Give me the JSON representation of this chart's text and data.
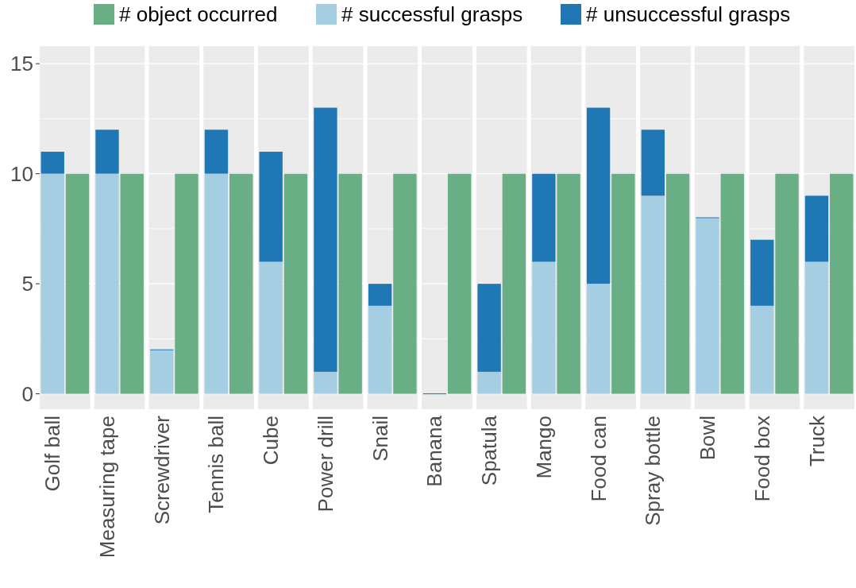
{
  "chart_data": {
    "type": "bar",
    "stacked": true,
    "categories": [
      "Golf ball",
      null,
      "Measuring tape",
      null,
      "Screwdriver",
      null,
      "Tennis ball",
      null,
      "Cube",
      null,
      "Power drill",
      null,
      "Snail",
      null,
      "Banana",
      null,
      "Spatula",
      null,
      "Mango",
      null,
      "Food can",
      null,
      "Spray bottle",
      null,
      "Bowl",
      null,
      "Food box",
      null,
      "Truck",
      null
    ],
    "ylim": [
      -0.7,
      15.8
    ],
    "yticks": [
      0,
      {
        "value": 2.5,
        "label": null
      },
      5,
      {
        "value": 7.5,
        "label": null
      },
      10,
      {
        "value": 12.5,
        "label": null
      },
      15
    ],
    "grid": true,
    "legend": "top",
    "series": [
      {
        "name": "# object occurred",
        "color": "#6aae86",
        "values": [
          null,
          10,
          null,
          10,
          null,
          10,
          null,
          10,
          null,
          10,
          null,
          10,
          null,
          10,
          null,
          10,
          null,
          10,
          null,
          10,
          null,
          10,
          null,
          10,
          null,
          10,
          null,
          10,
          null,
          10
        ]
      },
      {
        "name": "# successful grasps",
        "color": "#a6cee3",
        "values": [
          10,
          null,
          10,
          null,
          2,
          null,
          10,
          null,
          6,
          null,
          1,
          null,
          4,
          null,
          0,
          null,
          1,
          null,
          6,
          null,
          5,
          null,
          9,
          null,
          8,
          null,
          4,
          null,
          6,
          null
        ]
      },
      {
        "name": "# unsuccessful grasps",
        "color": "#1f78b4",
        "values": [
          1,
          null,
          2,
          null,
          0,
          null,
          2,
          null,
          5,
          null,
          12,
          null,
          1,
          null,
          0,
          null,
          4,
          null,
          4,
          null,
          8,
          null,
          3,
          null,
          0,
          null,
          3,
          null,
          3,
          null
        ]
      }
    ]
  }
}
